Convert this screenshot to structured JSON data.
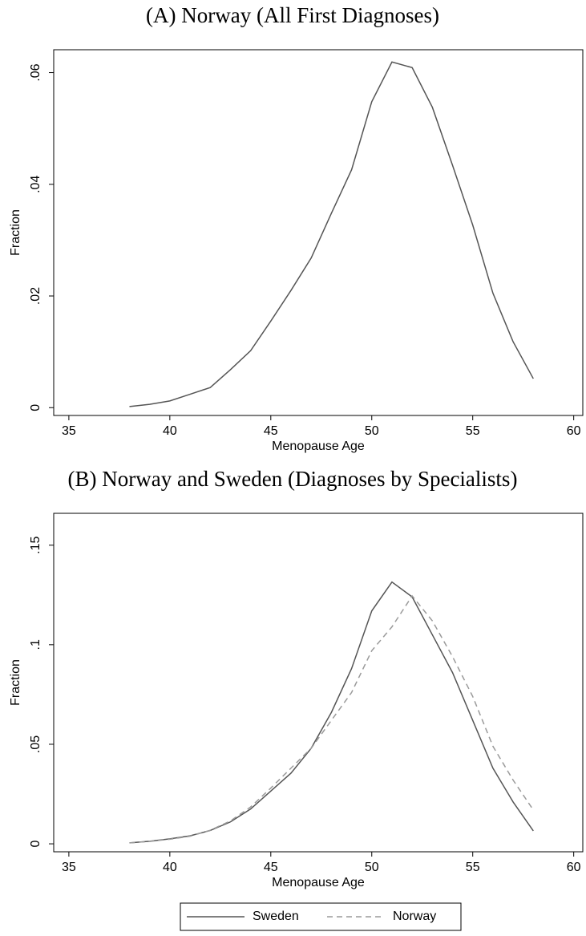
{
  "chart_data": [
    {
      "type": "line",
      "title": "(A) Norway (All First Diagnoses)",
      "x_label": "Menopause Age",
      "y_label": "Fraction",
      "x": [
        38,
        39,
        40,
        41,
        42,
        43,
        44,
        45,
        46,
        47,
        48,
        49,
        50,
        51,
        52,
        53,
        54,
        55,
        56,
        57,
        58
      ],
      "values": [
        0.0002,
        0.0006,
        0.0012,
        0.0024,
        0.0036,
        0.0068,
        0.0102,
        0.0155,
        0.021,
        0.0268,
        0.0348,
        0.0426,
        0.0548,
        0.0619,
        0.0609,
        0.0538,
        0.0434,
        0.0327,
        0.0205,
        0.0118,
        0.0052
      ],
      "color": "#555555",
      "xlim": [
        34.25,
        60.45
      ],
      "ylim": [
        -0.0014,
        0.0641
      ],
      "xticks": [
        35,
        40,
        45,
        50,
        55,
        60
      ],
      "yticks": [
        0,
        {
          "value": 0.02,
          "label": ".02"
        },
        {
          "value": 0.04,
          "label": ".04"
        },
        {
          "value": 0.06,
          "label": ".06"
        }
      ]
    },
    {
      "type": "line",
      "title": "(B) Norway and Sweden (Diagnoses by Specialists)",
      "x_label": "Menopause Age",
      "y_label": "Fraction",
      "x": [
        38,
        39,
        40,
        41,
        42,
        43,
        44,
        45,
        46,
        47,
        48,
        49,
        50,
        51,
        52,
        53,
        54,
        55,
        56,
        57,
        58
      ],
      "series": [
        {
          "name": "Sweden",
          "color": "#555555",
          "style": "solid",
          "values": [
            0.0005,
            0.0013,
            0.0025,
            0.004,
            0.0067,
            0.011,
            0.0175,
            0.0265,
            0.0355,
            0.048,
            0.066,
            0.088,
            0.117,
            0.1315,
            0.124,
            0.105,
            0.086,
            0.062,
            0.038,
            0.021,
            0.0065
          ]
        },
        {
          "name": "Norway",
          "color": "#9a9a9a",
          "style": "dashed",
          "values": [
            0.0005,
            0.0012,
            0.0023,
            0.0038,
            0.0068,
            0.0115,
            0.0185,
            0.028,
            0.038,
            0.048,
            0.062,
            0.076,
            0.097,
            0.109,
            0.1245,
            0.112,
            0.094,
            0.074,
            0.049,
            0.032,
            0.017
          ]
        }
      ],
      "xlim": [
        34.25,
        60.45
      ],
      "ylim": [
        -0.004,
        0.166
      ],
      "xticks": [
        35,
        40,
        45,
        50,
        55,
        60
      ],
      "yticks": [
        0,
        {
          "value": 0.05,
          "label": ".05"
        },
        {
          "value": 0.1,
          "label": ".1"
        },
        {
          "value": 0.15,
          "label": ".15"
        }
      ],
      "legend": "bottom"
    }
  ]
}
